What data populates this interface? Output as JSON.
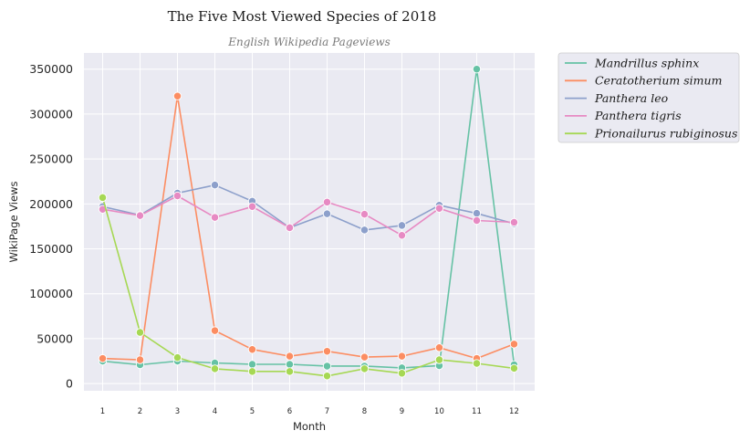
{
  "chart_data": {
    "type": "line",
    "title": "The Five Most Viewed Species of 2018",
    "subtitle": "English Wikipedia Pageviews",
    "xlabel": "Month",
    "ylabel": "WikiPage Views",
    "x": [
      1,
      2,
      3,
      4,
      5,
      6,
      7,
      8,
      9,
      10,
      11,
      12
    ],
    "xticks": [
      "1",
      "2",
      "3",
      "4",
      "5",
      "6",
      "7",
      "8",
      "9",
      "10",
      "11",
      "12"
    ],
    "yticks": [
      0,
      50000,
      100000,
      150000,
      200000,
      250000,
      300000,
      350000
    ],
    "ytick_labels": [
      "0",
      "50000",
      "100000",
      "150000",
      "200000",
      "250000",
      "300000",
      "350000"
    ],
    "xlim": [
      0.5,
      12.55
    ],
    "ylim": [
      -8000,
      368000
    ],
    "grid": true,
    "background": "#eaeaf2",
    "legend_position": "outside-right",
    "series": [
      {
        "name": "Mandrillus sphinx",
        "color": "#66c2a5",
        "values": [
          25000,
          21000,
          25000,
          23000,
          21500,
          21500,
          19500,
          19500,
          17500,
          20000,
          350000,
          21000
        ]
      },
      {
        "name": "Ceratotherium simum",
        "color": "#fc8d62",
        "values": [
          28000,
          26500,
          320000,
          59000,
          38000,
          30500,
          36000,
          29500,
          30500,
          40000,
          28000,
          44000
        ]
      },
      {
        "name": "Panthera leo",
        "color": "#8da0cb",
        "values": [
          197000,
          187500,
          212000,
          221000,
          203000,
          173500,
          189000,
          171000,
          176000,
          198500,
          189500,
          178000
        ]
      },
      {
        "name": "Panthera tigris",
        "color": "#e78ac3",
        "values": [
          194000,
          187000,
          209000,
          185000,
          197000,
          173500,
          202000,
          188500,
          165000,
          195000,
          181500,
          179500
        ]
      },
      {
        "name": "Prionailurus rubiginosus",
        "color": "#a6d854",
        "values": [
          207000,
          57000,
          29000,
          16500,
          13500,
          13500,
          8500,
          16500,
          11500,
          26500,
          22500,
          17000
        ]
      }
    ]
  }
}
